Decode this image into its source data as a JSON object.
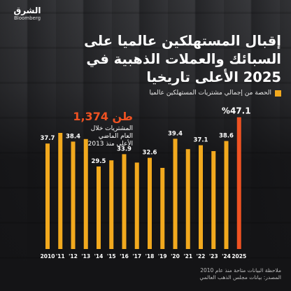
{
  "brand": {
    "arabic": "الشرق",
    "english": "Bloomberg"
  },
  "title_lines": [
    "إقبال المستهلكين عالميا على",
    "السبائك والعملات الذهبية في",
    "2025 الأعلى تاريخيا"
  ],
  "legend_label": "الحصة من إجمالي مشتريات المستهلكين عالميا",
  "annotation": {
    "value": "1,374 طن",
    "lines": [
      "المشتريات خلال",
      "العام الماضي",
      "الأعلى منذ 2013"
    ]
  },
  "footnotes": [
    "ملاحظة البيانات متاحة منذ عام 2010",
    "المصدر: بيانات مجلس الذهب العالمي"
  ],
  "colors": {
    "bar": "#f2a91e",
    "highlight": "#ef5222",
    "annotation": "#ef5222"
  },
  "chart_data": {
    "type": "bar",
    "categories": [
      "2010",
      "'11",
      "'12",
      "'13",
      "'14",
      "'15",
      "'16",
      "'17",
      "'18",
      "'19",
      "'20",
      "'21",
      "'22",
      "'23",
      "'24",
      "2025"
    ],
    "values": [
      37.7,
      41.5,
      38.4,
      39.3,
      29.5,
      31.7,
      33.9,
      30.9,
      32.6,
      29.0,
      39.4,
      35.7,
      37.1,
      35.0,
      38.6,
      47.1
    ],
    "labels": [
      "37.7",
      "",
      "38.4",
      "",
      "29.5",
      "",
      "33.9",
      "",
      "32.6",
      "",
      "39.4",
      "",
      "37.1",
      "",
      "38.6",
      "%47.1"
    ],
    "highlight_index": 15,
    "ylim": [
      0,
      50
    ],
    "grid": false
  }
}
